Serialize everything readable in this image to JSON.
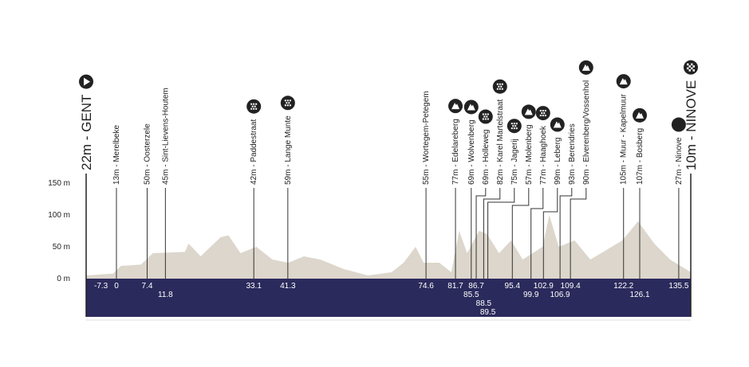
{
  "chart_data": {
    "type": "profile",
    "ylim": [
      0,
      150
    ],
    "yticks": [
      {
        "value": 0,
        "label": "0 m"
      },
      {
        "value": 50,
        "label": "50 m"
      },
      {
        "value": 100,
        "label": "100 m"
      },
      {
        "value": 150,
        "label": "150 m"
      }
    ],
    "xlim": [
      -7.3,
      138.4
    ],
    "start": {
      "label": "22m - GENT",
      "km": -7.3,
      "icon": "start"
    },
    "finish": {
      "label": "10m - NINOVE",
      "icon": "finish"
    },
    "points": [
      {
        "label": "13m - Merelbeke",
        "km": 0
      },
      {
        "label": "50m - Oosterzele",
        "km": 7.4
      },
      {
        "label": "45m - Sint-Lievens-Houtem",
        "km": 11.8
      },
      {
        "label": "42m - Paddestraat",
        "km": 33.1,
        "icon": "cobbles"
      },
      {
        "label": "59m - Lange Munte",
        "km": 41.3,
        "icon": "cobbles"
      },
      {
        "label": "55m - Wortegem-Petegem",
        "km": 74.6
      },
      {
        "label": "77m - Edelareberg",
        "km": 81.7,
        "icon": "climb"
      },
      {
        "label": "69m - Wolvenberg",
        "km": 85.5,
        "icon": "climb"
      },
      {
        "label": "69m - Holleweg",
        "km": 86.7,
        "icon": "cobbles"
      },
      {
        "label": "82m - Karel Martelstraat",
        "km": 88.5,
        "icon": "cobbles"
      },
      {
        "label": "75m - Jagerij",
        "km": 89.5,
        "icon": "cobbles"
      },
      {
        "label": "57m - Molenberg",
        "km": 95.4,
        "icon": "climb"
      },
      {
        "label": "77m - Haaghoek",
        "km": 99.9,
        "icon": "cobbles"
      },
      {
        "label": "99m - Leberg",
        "km": 102.9,
        "icon": "climb"
      },
      {
        "label": "93m - Berendries",
        "km": 106.9
      },
      {
        "label": "90m - Elverenberg/Vossenhol",
        "km": 109.4,
        "icon": "climb"
      },
      {
        "label": "105m - Muur - Kapelmuur",
        "km": 122.2,
        "icon": "climb"
      },
      {
        "label": "107m - Bosberg",
        "km": 126.1,
        "icon": "climb"
      },
      {
        "label": "27m - Ninove",
        "km": 135.5,
        "icon": "feed"
      }
    ],
    "profile": {
      "color": "#dcd6cc",
      "x": [
        -7.3,
        -0.8,
        1.1,
        5.9,
        8.8,
        16.5,
        17.4,
        20.3,
        25.1,
        27,
        29.9,
        33.7,
        37.6,
        41.4,
        45.2,
        49.1,
        54.8,
        60.6,
        66.3,
        69.2,
        72.1,
        74,
        77.8,
        80.7,
        82.6,
        84.5,
        87.4,
        89.3,
        92.2,
        95.1,
        97.9,
        102.7,
        104.3,
        106.6,
        110.4,
        114.2,
        118.1,
        121.9,
        125.7,
        129.6,
        133.4,
        137.2,
        138.4
      ],
      "values": [
        5,
        8,
        20,
        22,
        40,
        42,
        55,
        35,
        65,
        68,
        40,
        50,
        30,
        25,
        35,
        30,
        15,
        5,
        10,
        25,
        50,
        25,
        25,
        10,
        75,
        40,
        75,
        70,
        40,
        60,
        30,
        50,
        100,
        50,
        60,
        30,
        45,
        60,
        90,
        55,
        30,
        15,
        10
      ]
    },
    "band_color": "#2b2a5c"
  }
}
